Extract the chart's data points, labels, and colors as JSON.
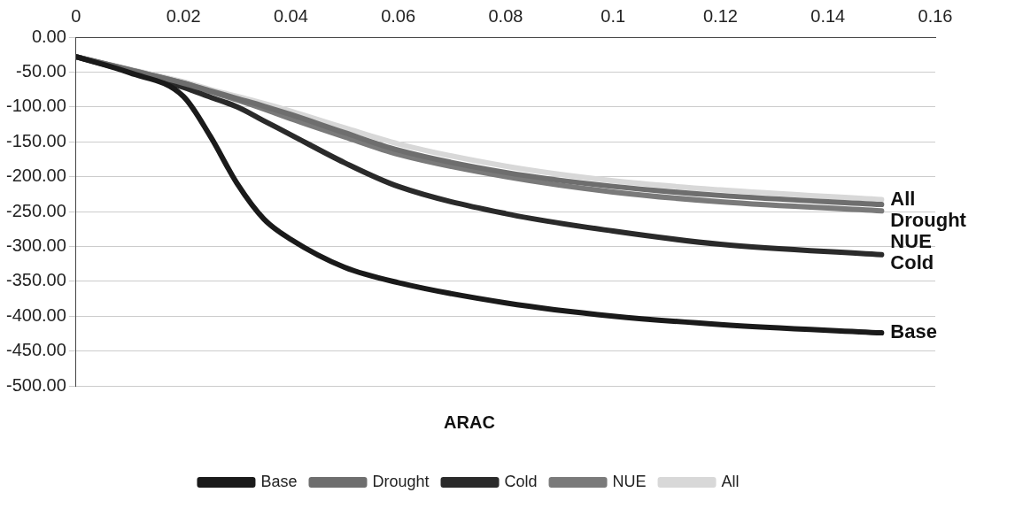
{
  "chart_data": {
    "type": "line",
    "xlabel": "ARAC",
    "xlim": [
      0,
      0.16
    ],
    "xticks": [
      0,
      0.02,
      0.04,
      0.06,
      0.08,
      0.1,
      0.12,
      0.14,
      0.16
    ],
    "ylim": [
      -500,
      0
    ],
    "yticks": [
      {
        "value": 0,
        "label": "0.00"
      },
      {
        "value": -50,
        "label": "-50.00"
      },
      {
        "value": -100,
        "label": "-100.00"
      },
      {
        "value": -150,
        "label": "-150.00"
      },
      {
        "value": -200,
        "label": "-200.00"
      },
      {
        "value": -250,
        "label": "-250.00"
      },
      {
        "value": -300,
        "label": "-300.00"
      },
      {
        "value": -350,
        "label": "-350.00"
      },
      {
        "value": -400,
        "label": "-400.00"
      },
      {
        "value": -450,
        "label": "-450.00"
      },
      {
        "value": -500,
        "label": "-500.00"
      }
    ],
    "grid": "y",
    "legend": "bottom",
    "marker": "none",
    "line_style": "solid",
    "x": [
      0,
      0.01,
      0.02,
      0.025,
      0.03,
      0.035,
      0.04,
      0.05,
      0.06,
      0.08,
      0.1,
      0.12,
      0.15
    ],
    "series": [
      {
        "name": "Base",
        "color": "#1a1a1a",
        "values": [
          -28,
          -51,
          -85,
          -142,
          -210,
          -261,
          -290,
          -330,
          -352,
          -381,
          -400,
          -412,
          -424
        ]
      },
      {
        "name": "Drought",
        "color": "#6e6e6e",
        "values": [
          -28,
          -47,
          -66,
          -77,
          -88,
          -99,
          -111,
          -137,
          -162,
          -194,
          -214,
          -227,
          -240
        ]
      },
      {
        "name": "Cold",
        "color": "#2a2a2a",
        "values": [
          -28,
          -49,
          -72,
          -86,
          -100,
          -120,
          -140,
          -180,
          -214,
          -253,
          -278,
          -297,
          -312
        ]
      },
      {
        "name": "NUE",
        "color": "#7a7a7a",
        "values": [
          -28,
          -47,
          -66,
          -78,
          -90,
          -103,
          -117,
          -143,
          -168,
          -200,
          -222,
          -236,
          -249
        ]
      },
      {
        "name": "All",
        "color": "#d8d8d8",
        "values": [
          -28,
          -46,
          -64,
          -75,
          -85,
          -95,
          -106,
          -130,
          -153,
          -185,
          -206,
          -219,
          -233
        ]
      }
    ]
  }
}
